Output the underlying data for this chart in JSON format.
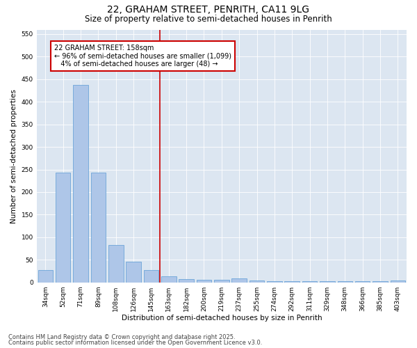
{
  "title": "22, GRAHAM STREET, PENRITH, CA11 9LG",
  "subtitle": "Size of property relative to semi-detached houses in Penrith",
  "xlabel": "Distribution of semi-detached houses by size in Penrith",
  "ylabel": "Number of semi-detached properties",
  "categories": [
    "34sqm",
    "52sqm",
    "71sqm",
    "89sqm",
    "108sqm",
    "126sqm",
    "145sqm",
    "163sqm",
    "182sqm",
    "200sqm",
    "219sqm",
    "237sqm",
    "255sqm",
    "274sqm",
    "292sqm",
    "311sqm",
    "329sqm",
    "348sqm",
    "366sqm",
    "385sqm",
    "403sqm"
  ],
  "values": [
    27,
    243,
    437,
    243,
    83,
    46,
    27,
    13,
    8,
    6,
    6,
    9,
    4,
    3,
    3,
    2,
    2,
    2,
    2,
    2,
    4
  ],
  "bar_color": "#aec6e8",
  "bar_edge_color": "#5b9bd5",
  "background_color": "#dce6f1",
  "ylim": [
    0,
    560
  ],
  "yticks": [
    0,
    50,
    100,
    150,
    200,
    250,
    300,
    350,
    400,
    450,
    500,
    550
  ],
  "property_label": "22 GRAHAM STREET: 158sqm",
  "pct_smaller": 96,
  "n_smaller": 1099,
  "pct_larger": 4,
  "n_larger": 48,
  "vline_position": 6.5,
  "annotation_box_color": "#ffffff",
  "annotation_box_edge": "#cc0000",
  "footer1": "Contains HM Land Registry data © Crown copyright and database right 2025.",
  "footer2": "Contains public sector information licensed under the Open Government Licence v3.0.",
  "title_fontsize": 10,
  "subtitle_fontsize": 8.5,
  "axis_label_fontsize": 7.5,
  "tick_fontsize": 6.5,
  "annotation_fontsize": 7,
  "footer_fontsize": 6
}
